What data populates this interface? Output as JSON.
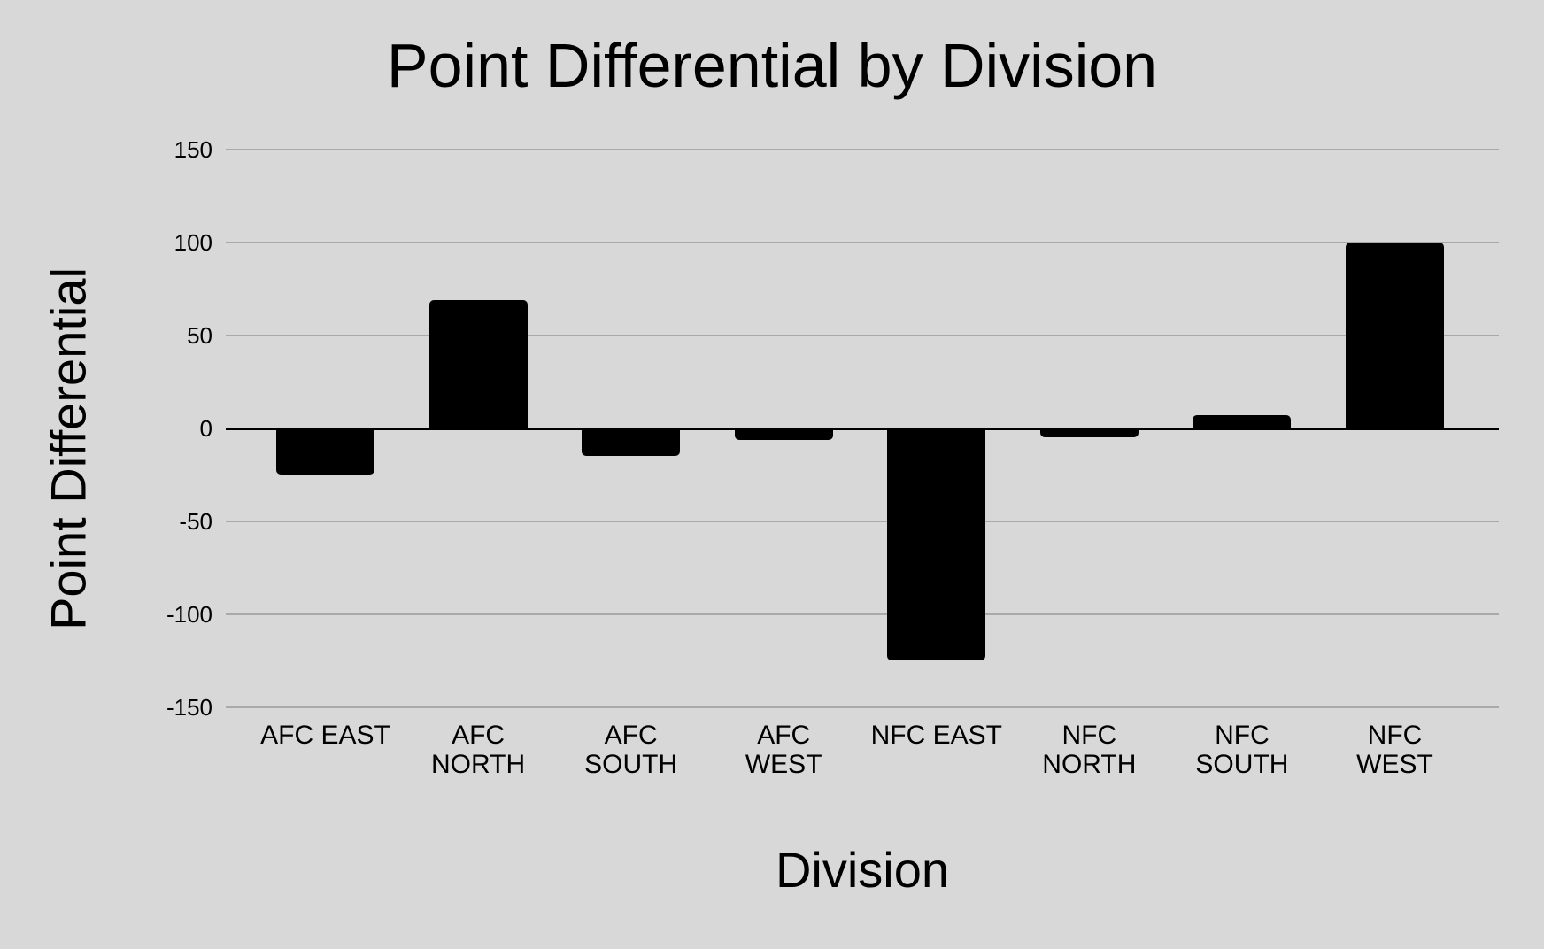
{
  "chart_data": {
    "type": "bar",
    "title": "Point Differential by Division",
    "xlabel": "Division",
    "ylabel": "Point Differential",
    "categories": [
      "AFC EAST",
      "AFC NORTH",
      "AFC SOUTH",
      "AFC WEST",
      "NFC EAST",
      "NFC NORTH",
      "NFC SOUTH",
      "NFC WEST"
    ],
    "categories_display": [
      "AFC EAST",
      "AFC\nNORTH",
      "AFC\nSOUTH",
      "AFC\nWEST",
      "NFC EAST",
      "NFC\nNORTH",
      "NFC\nSOUTH",
      "NFC\nWEST"
    ],
    "values": [
      -25,
      69,
      -15,
      -6,
      -125,
      -5,
      7,
      100
    ],
    "ylim": [
      -150,
      150
    ],
    "ytick_interval": 50,
    "ytick_labels": [
      "150",
      "100",
      "50",
      "0",
      "-50",
      "-100",
      "-150"
    ],
    "grid": true,
    "legend": "none",
    "bar_color": "#000000",
    "background_color": "#d8d8d8",
    "gridline_color": "#a9a9a9",
    "zero_line_color": "#000000",
    "text_color": "#000000"
  }
}
